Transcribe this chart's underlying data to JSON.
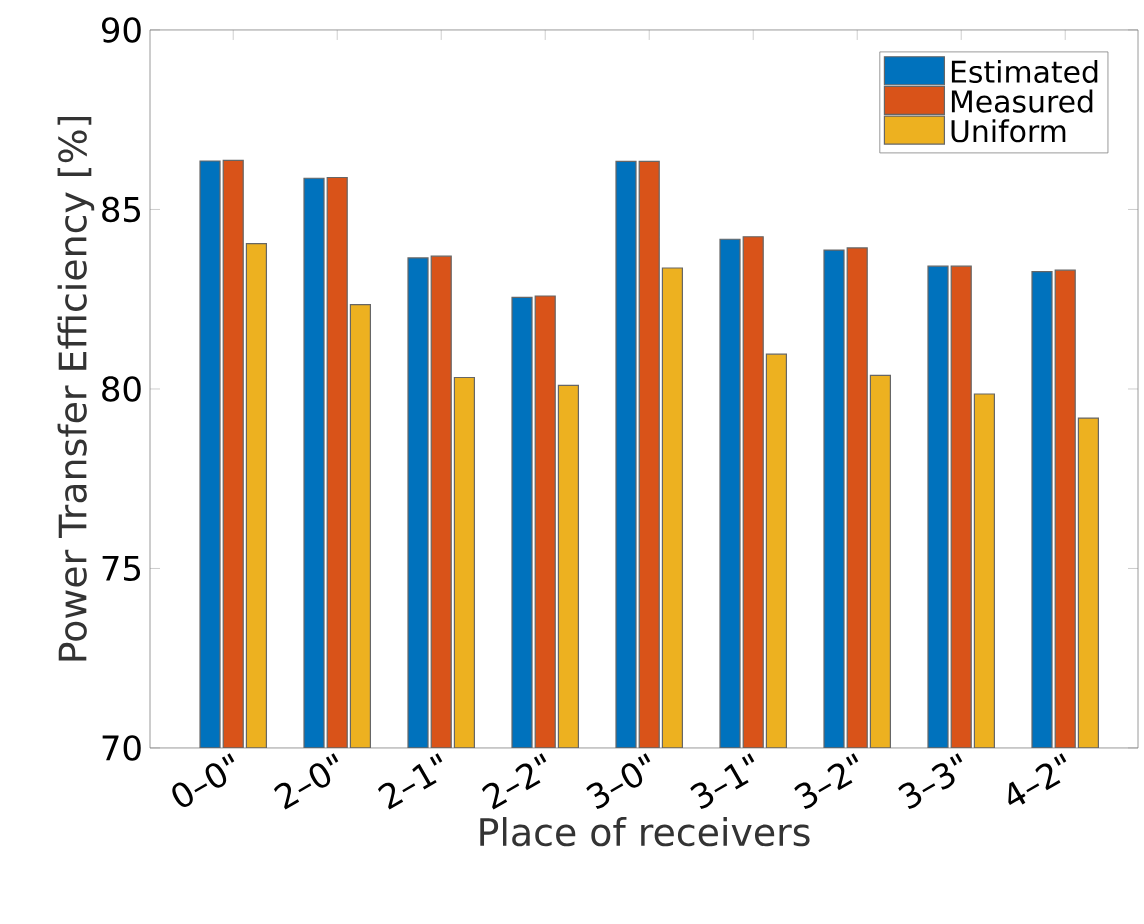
{
  "chart_data": {
    "type": "bar",
    "xlabel": "Place of receivers",
    "ylabel": "Power Transfer Efficiency [%]",
    "categories": [
      "0–0\"",
      "2–0\"",
      "2–1\"",
      "2–2\"",
      "3–0\"",
      "3–1\"",
      "3–2\"",
      "3–3\"",
      "4–2\""
    ],
    "series": [
      {
        "name": "Estimated",
        "color": "#0072bd",
        "values": [
          86.35,
          85.87,
          83.65,
          82.55,
          86.34,
          84.17,
          83.87,
          83.42,
          83.27
        ]
      },
      {
        "name": "Measured",
        "color": "#d95319",
        "values": [
          86.37,
          85.89,
          83.7,
          82.59,
          86.34,
          84.24,
          83.93,
          83.42,
          83.31
        ]
      },
      {
        "name": "Uniform",
        "color": "#edb120",
        "values": [
          84.05,
          82.35,
          80.32,
          80.1,
          83.37,
          80.97,
          80.38,
          79.86,
          79.19
        ]
      }
    ],
    "ylim": [
      70,
      90
    ],
    "yticks": [
      70,
      75,
      80,
      85,
      90
    ],
    "legend": "top right",
    "grid": false
  }
}
